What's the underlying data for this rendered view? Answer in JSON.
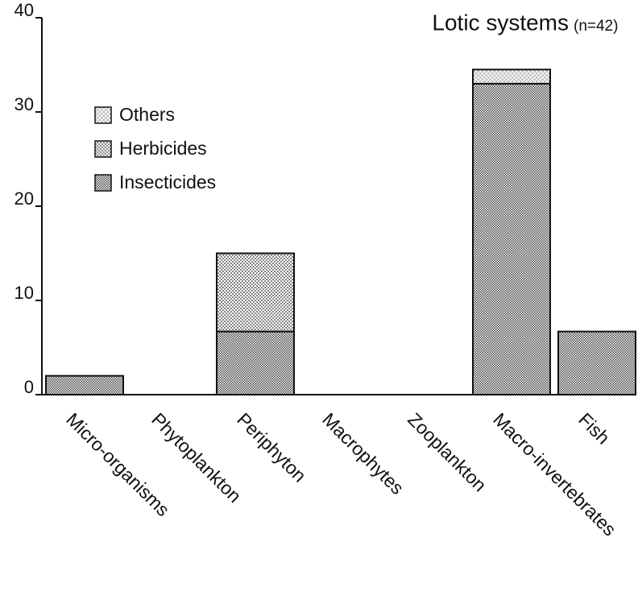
{
  "chart_data": {
    "type": "bar",
    "stacked": true,
    "title": "Lotic systems",
    "subtitle": "(n=42)",
    "categories": [
      "Micro-organisms",
      "Phytoplankton",
      "Periphyton",
      "Macrophytes",
      "Zooplankton",
      "Macro-invertebrates",
      "Fish"
    ],
    "series": [
      {
        "name": "Others",
        "color": "#bbbbbb",
        "values": [
          0,
          0,
          0,
          0,
          0,
          1.5,
          0
        ]
      },
      {
        "name": "Herbicides",
        "color": "#888888",
        "values": [
          0,
          0,
          8.3,
          0,
          0,
          0,
          0
        ]
      },
      {
        "name": "Insecticides",
        "color": "#444444",
        "values": [
          2,
          0,
          6.7,
          0,
          0,
          33,
          6.7
        ]
      }
    ],
    "ylim": [
      0,
      40
    ],
    "yticks": [
      0,
      10,
      20,
      30,
      40
    ],
    "grid": false,
    "legend": "upper left"
  }
}
